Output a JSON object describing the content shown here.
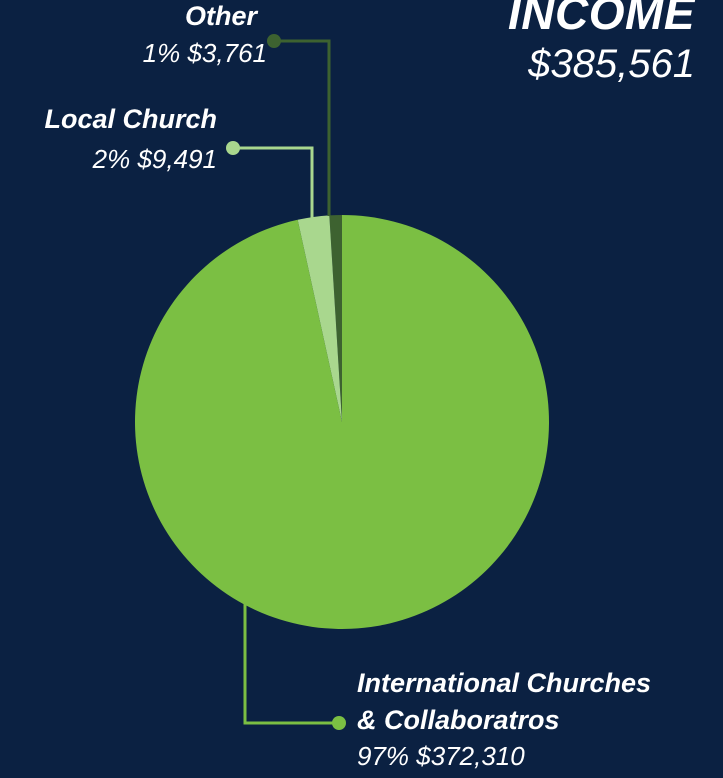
{
  "title": "INCOME",
  "total": "$385,561",
  "colors": {
    "background": "#0b2142",
    "other": "#3d6230",
    "local_church": "#a9d78e",
    "international": "#7bbf43",
    "text": "#ffffff"
  },
  "chart_data": {
    "type": "pie",
    "title": "INCOME",
    "subtitle": "$385,561",
    "slices": [
      {
        "name": "Other",
        "percent_label": "1%",
        "value_label": "$3,761",
        "value": 3761,
        "color": "#3d6230"
      },
      {
        "name": "Local Church",
        "percent_label": "2%",
        "value_label": "$9,491",
        "value": 9491,
        "color": "#a9d78e"
      },
      {
        "name_line1": "International Churches",
        "name_line2": "& Collaboratros",
        "percent_label": "97%",
        "value_label": "$372,310",
        "value": 372310,
        "color": "#7bbf43"
      }
    ]
  }
}
